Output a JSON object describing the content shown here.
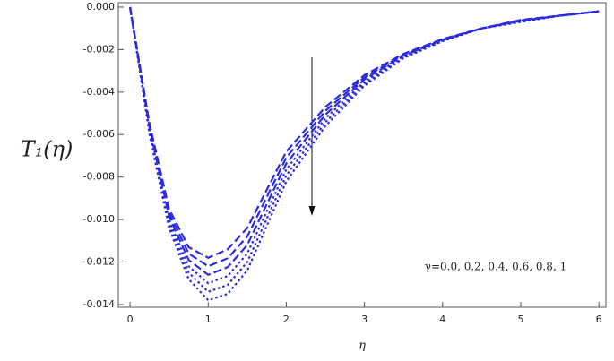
{
  "chart_data": {
    "type": "line",
    "y_label": "T₁(η)",
    "x_label": "η",
    "annotation": "γ=0.0, 0.2, 0.4, 0.6, 0.8, 1",
    "x": [
      0,
      0.25,
      0.5,
      0.75,
      1,
      1.25,
      1.5,
      2,
      2.5,
      3,
      3.5,
      4,
      4.5,
      5,
      5.5,
      6
    ],
    "series": [
      {
        "color": "#2b2be0",
        "line_style": "dashed",
        "values": [
          0,
          -0.0055,
          -0.0095,
          -0.0113,
          -0.0118,
          -0.0114,
          -0.0104,
          -0.0068,
          -0.0047,
          -0.0032,
          -0.0022,
          -0.0015,
          -0.001,
          -0.0006,
          -0.0004,
          -0.0002
        ]
      },
      {
        "color": "#2b2be0",
        "line_style": "dashed",
        "values": [
          0,
          -0.0056,
          -0.00968,
          -0.0116,
          -0.0122,
          -0.01182,
          -0.0108,
          -0.00708,
          -0.00488,
          -0.0033,
          -0.00224,
          -0.00152,
          -0.001,
          -0.00062,
          -0.0004,
          -0.0002
        ]
      },
      {
        "color": "#2b2be0",
        "line_style": "dashed",
        "values": [
          0,
          -0.0057,
          -0.00986,
          -0.0119,
          -0.0126,
          -0.01224,
          -0.0112,
          -0.00736,
          -0.00506,
          -0.0034,
          -0.00228,
          -0.00154,
          -0.001,
          -0.00064,
          -0.0004,
          -0.0002
        ]
      },
      {
        "color": "#2b2be0",
        "line_style": "dotted",
        "values": [
          0,
          -0.0058,
          -0.01004,
          -0.0122,
          -0.013,
          -0.01266,
          -0.0116,
          -0.00764,
          -0.00524,
          -0.0035,
          -0.00232,
          -0.00156,
          -0.001,
          -0.00066,
          -0.0004,
          -0.0002
        ]
      },
      {
        "color": "#2b2be0",
        "line_style": "dotted",
        "values": [
          0,
          -0.0059,
          -0.01022,
          -0.0125,
          -0.0134,
          -0.01308,
          -0.012,
          -0.00792,
          -0.00542,
          -0.0036,
          -0.00236,
          -0.00158,
          -0.001,
          -0.00068,
          -0.0004,
          -0.0002
        ]
      },
      {
        "color": "#2b2be0",
        "line_style": "dotted",
        "values": [
          0,
          -0.006,
          -0.0104,
          -0.0128,
          -0.0138,
          -0.0135,
          -0.0124,
          -0.0082,
          -0.0056,
          -0.0037,
          -0.0024,
          -0.0016,
          -0.001,
          -0.0007,
          -0.0004,
          -0.0002
        ]
      }
    ],
    "xlim": [
      -0.15,
      6.09
    ],
    "ylim": [
      -0.01413,
      0.00021
    ],
    "xticks": [
      0,
      1,
      2,
      3,
      4,
      5,
      6
    ],
    "yticks": [
      {
        "value": 0,
        "label": "0.000"
      },
      {
        "value": -0.002,
        "label": "-0.002"
      },
      {
        "value": -0.004,
        "label": "-0.004"
      },
      {
        "value": -0.006,
        "label": "-0.006"
      },
      {
        "value": -0.008,
        "label": "-0.008"
      },
      {
        "value": -0.01,
        "label": "-0.010"
      },
      {
        "value": -0.012,
        "label": "-0.012"
      },
      {
        "value": -0.014,
        "label": "-0.014"
      }
    ]
  }
}
